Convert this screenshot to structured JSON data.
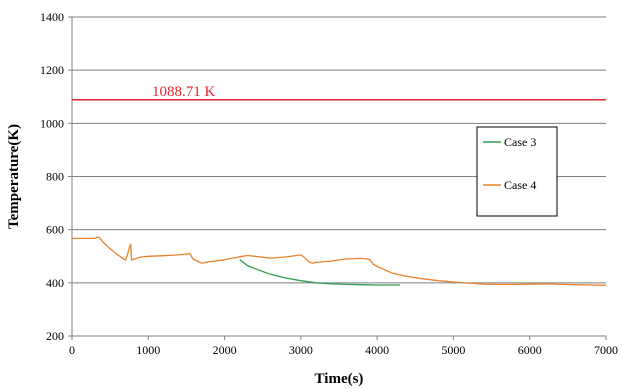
{
  "chart_data": {
    "type": "line",
    "xlabel": "Time(s)",
    "ylabel": "Temperature(K)",
    "xlim": [
      0,
      7000
    ],
    "ylim": [
      200,
      1400
    ],
    "xticks": [
      0,
      1000,
      2000,
      3000,
      4000,
      5000,
      6000,
      7000
    ],
    "yticks": [
      200,
      400,
      600,
      800,
      1000,
      1200,
      1400
    ],
    "grid": "horizontal",
    "legend_position": "right",
    "annotation": {
      "label": "1088.71 K",
      "value": 1088.71,
      "color": "#e0262a"
    },
    "series": [
      {
        "name": "Case 3",
        "color": "#2e9e52",
        "x": [
          2200,
          2300,
          2400,
          2600,
          2800,
          3000,
          3200,
          3400,
          3600,
          3800,
          4000,
          4200,
          4300
        ],
        "y": [
          487,
          465,
          453,
          432,
          418,
          408,
          400,
          396,
          394,
          393,
          392,
          392,
          392
        ]
      },
      {
        "name": "Case 4",
        "color": "#e9832c",
        "x": [
          0,
          300,
          330,
          360,
          400,
          500,
          600,
          700,
          720,
          750,
          770,
          780,
          800,
          900,
          1000,
          1200,
          1400,
          1550,
          1580,
          1600,
          1700,
          1800,
          1900,
          2000,
          2100,
          2200,
          2300,
          2400,
          2600,
          2800,
          3000,
          3050,
          3100,
          3150,
          3200,
          3400,
          3600,
          3800,
          3900,
          3950,
          4000,
          4100,
          4200,
          4400,
          4600,
          4800,
          5000,
          5200,
          5400,
          5600,
          5800,
          6000,
          6200,
          6400,
          6600,
          6800,
          7000
        ],
        "y": [
          567,
          567,
          572,
          570,
          555,
          528,
          505,
          485,
          500,
          530,
          545,
          486,
          488,
          497,
          500,
          502,
          505,
          510,
          492,
          488,
          474,
          480,
          483,
          487,
          493,
          498,
          503,
          500,
          493,
          497,
          505,
          495,
          480,
          474,
          477,
          482,
          490,
          492,
          488,
          470,
          462,
          449,
          436,
          424,
          415,
          408,
          403,
          399,
          395,
          394,
          394,
          395,
          396,
          394,
          393,
          392,
          391
        ]
      }
    ]
  }
}
